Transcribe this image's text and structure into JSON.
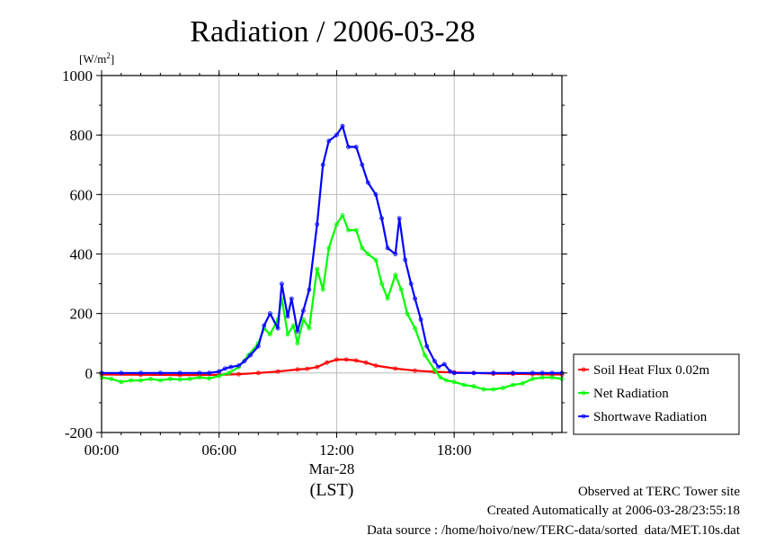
{
  "chart_data": {
    "type": "line",
    "title": "Radiation / 2006-03-28",
    "ylabel": "[W/m²]",
    "ylabel_base": "[W/m",
    "ylabel_sup": "2",
    "ylabel_close": "]",
    "xlabel": "(LST)",
    "date_label": "Mar-28",
    "xlim": [
      0,
      23.5
    ],
    "ylim": [
      -200,
      1000
    ],
    "x_ticks": [
      {
        "value": 0,
        "label": "00:00"
      },
      {
        "value": 6,
        "label": "06:00"
      },
      {
        "value": 12,
        "label": "12:00"
      },
      {
        "value": 18,
        "label": "18:00"
      }
    ],
    "y_ticks": [
      {
        "value": 1000,
        "label": "1000"
      },
      {
        "value": 800,
        "label": "800"
      },
      {
        "value": 600,
        "label": "600"
      },
      {
        "value": 400,
        "label": "400"
      },
      {
        "value": 200,
        "label": "200"
      },
      {
        "value": 0,
        "label": "0"
      },
      {
        "value": -200,
        "label": "-200"
      }
    ],
    "grid": true,
    "legend_position": "right",
    "series": [
      {
        "name": "Soil Heat Flux 0.02m",
        "color": "#ff0000",
        "x": [
          0,
          2,
          4,
          5,
          6,
          7,
          8,
          9,
          10,
          10.5,
          11,
          11.5,
          12,
          12.5,
          13,
          13.5,
          14,
          15,
          16,
          17,
          18,
          19,
          20,
          21,
          22,
          23,
          23.5
        ],
        "y": [
          -5,
          -6,
          -7,
          -7,
          -6,
          -4,
          0,
          5,
          12,
          14,
          20,
          35,
          45,
          45,
          42,
          35,
          25,
          15,
          8,
          4,
          2,
          0,
          -2,
          -3,
          -4,
          -5,
          -5
        ]
      },
      {
        "name": "Net Radiation",
        "color": "#00ff00",
        "x": [
          0,
          0.5,
          1,
          1.5,
          2,
          2.5,
          3,
          3.5,
          4,
          4.5,
          5,
          5.5,
          6,
          6.5,
          7,
          7.5,
          8,
          8.3,
          8.6,
          9,
          9.2,
          9.5,
          9.8,
          10,
          10.3,
          10.6,
          11,
          11.3,
          11.6,
          12,
          12.3,
          12.6,
          13,
          13.3,
          13.6,
          14,
          14.3,
          14.6,
          15,
          15.3,
          15.6,
          16,
          16.5,
          17,
          17.3,
          17.6,
          18,
          18.5,
          19,
          19.5,
          20,
          20.5,
          21,
          21.5,
          22,
          22.5,
          23,
          23.5
        ],
        "y": [
          -15,
          -20,
          -30,
          -25,
          -25,
          -20,
          -25,
          -20,
          -22,
          -20,
          -15,
          -18,
          -10,
          0,
          20,
          60,
          100,
          150,
          130,
          180,
          250,
          130,
          160,
          100,
          180,
          150,
          350,
          280,
          420,
          500,
          530,
          480,
          480,
          420,
          400,
          380,
          300,
          250,
          330,
          280,
          200,
          150,
          60,
          10,
          -15,
          -25,
          -30,
          -40,
          -45,
          -55,
          -55,
          -50,
          -40,
          -35,
          -20,
          -15,
          -15,
          -20
        ]
      },
      {
        "name": "Shortwave Radiation",
        "color": "#0000ff",
        "x": [
          0,
          1,
          2,
          3,
          4,
          5,
          5.5,
          6,
          6.3,
          6.6,
          7,
          7.3,
          7.6,
          8,
          8.3,
          8.6,
          9,
          9.2,
          9.5,
          9.7,
          10,
          10.3,
          10.6,
          11,
          11.3,
          11.6,
          12,
          12.3,
          12.6,
          13,
          13.3,
          13.6,
          14,
          14.3,
          14.6,
          15,
          15.2,
          15.5,
          15.8,
          16,
          16.3,
          16.6,
          17,
          17.2,
          17.5,
          17.8,
          18,
          19,
          20,
          21,
          22,
          22.5,
          23,
          23.5
        ],
        "y": [
          0,
          0,
          0,
          0,
          0,
          0,
          0,
          5,
          15,
          20,
          25,
          40,
          60,
          90,
          160,
          200,
          150,
          300,
          190,
          250,
          140,
          210,
          280,
          500,
          700,
          780,
          800,
          830,
          760,
          760,
          700,
          640,
          600,
          520,
          420,
          400,
          520,
          380,
          300,
          250,
          180,
          90,
          40,
          20,
          30,
          5,
          0,
          0,
          0,
          0,
          0,
          0,
          0,
          0
        ]
      }
    ]
  },
  "footer": {
    "line1": "Observed at TERC Tower site",
    "line2": "Created Automatically at 2006-03-28/23:55:18",
    "line3": "Data source : /home/hoivo/new/TERC-data/sorted_data/MET.10s.dat"
  }
}
